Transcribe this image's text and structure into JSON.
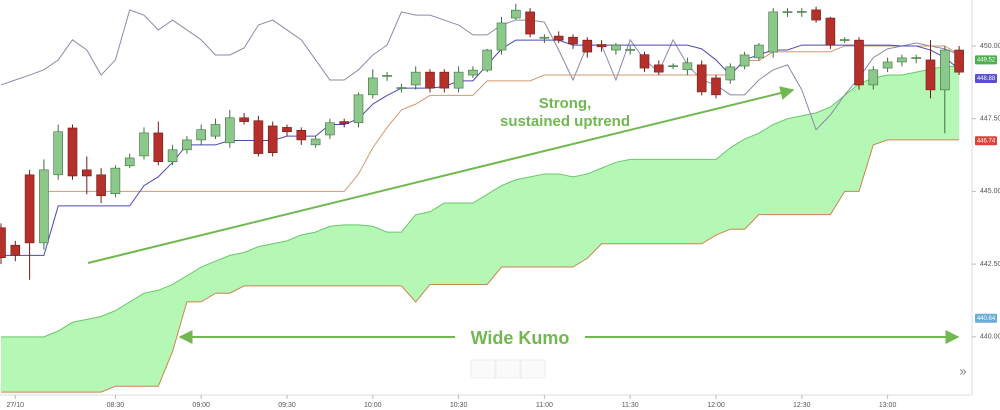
{
  "chart_data": {
    "type": "candlestick",
    "categories": [
      null,
      "27/10",
      null,
      null,
      null,
      null,
      null,
      null,
      "08:30",
      null,
      null,
      null,
      null,
      null,
      "09:00",
      null,
      null,
      null,
      null,
      null,
      "09:30",
      null,
      null,
      null,
      null,
      null,
      "10:00",
      null,
      null,
      null,
      null,
      null,
      "10:30",
      null,
      null,
      null,
      null,
      null,
      "11:00",
      null,
      null,
      null,
      null,
      null,
      "11:30",
      null,
      null,
      null,
      null,
      null,
      "12:00",
      null,
      null,
      null,
      null,
      null,
      "12:30",
      null,
      null,
      null,
      null,
      null,
      "13:00",
      null,
      null,
      null,
      null,
      null
    ],
    "open": [
      443.75,
      443.15,
      445.57,
      443.23,
      445.57,
      447.18,
      445.74,
      445.57,
      444.92,
      445.88,
      446.22,
      447.01,
      446.02,
      446.43,
      446.77,
      446.9,
      446.67,
      447.53,
      447.43,
      447.25,
      447.2,
      447.1,
      446.6,
      446.94,
      447.4,
      447.36,
      448.32,
      448.97,
      448.55,
      448.66,
      449.1,
      449.1,
      448.55,
      449.0,
      449.17,
      449.86,
      450.96,
      451.17,
      450.27,
      450.34,
      450.3,
      450.2,
      450.05,
      449.86,
      449.86,
      449.7,
      449.35,
      449.31,
      449.18,
      449.35,
      448.9,
      448.83,
      449.31,
      449.59,
      449.79,
      451.17,
      451.17,
      451.24,
      450.96,
      450.2,
      450.2,
      448.66,
      449.24,
      449.45,
      449.59,
      449.52,
      448.49,
      449.86
    ],
    "high": [
      443.9,
      443.3,
      445.74,
      446.1,
      447.3,
      447.3,
      446.2,
      445.8,
      445.9,
      446.3,
      447.2,
      447.4,
      446.6,
      446.9,
      447.3,
      447.5,
      447.8,
      447.7,
      447.6,
      447.4,
      447.3,
      447.2,
      446.9,
      447.5,
      447.5,
      448.4,
      449.2,
      449.1,
      448.7,
      449.3,
      449.2,
      449.2,
      449.3,
      449.3,
      449.9,
      451.0,
      451.45,
      451.3,
      450.4,
      450.5,
      450.4,
      450.3,
      450.2,
      450.1,
      450.0,
      449.8,
      449.5,
      449.4,
      449.6,
      449.5,
      449.0,
      449.4,
      449.8,
      450.1,
      451.3,
      451.3,
      451.3,
      451.35,
      451.0,
      450.3,
      450.3,
      449.3,
      449.6,
      449.7,
      449.7,
      450.2,
      450.0,
      450.0
    ],
    "low": [
      442.5,
      442.6,
      441.96,
      443.0,
      445.4,
      445.4,
      444.9,
      444.6,
      444.8,
      445.8,
      446.1,
      445.9,
      445.9,
      446.3,
      446.6,
      446.8,
      446.5,
      447.3,
      446.2,
      446.2,
      446.9,
      446.6,
      446.5,
      446.8,
      447.2,
      447.2,
      448.2,
      448.8,
      448.4,
      448.5,
      448.4,
      448.4,
      448.4,
      448.9,
      449.1,
      449.7,
      450.9,
      450.3,
      450.1,
      450.1,
      449.9,
      449.6,
      449.8,
      449.7,
      449.7,
      449.1,
      449.0,
      449.2,
      449.0,
      448.3,
      448.2,
      448.7,
      449.2,
      449.5,
      449.6,
      451.0,
      451.0,
      450.8,
      449.9,
      450.1,
      448.5,
      448.5,
      449.1,
      449.3,
      449.4,
      448.2,
      447.0,
      449.0
    ],
    "close": [
      442.72,
      442.8,
      443.23,
      445.74,
      447.05,
      445.53,
      445.53,
      444.85,
      445.8,
      446.15,
      447.01,
      446.02,
      446.43,
      446.77,
      447.12,
      447.3,
      447.53,
      447.4,
      446.3,
      446.33,
      447.05,
      446.77,
      446.8,
      447.36,
      447.33,
      448.32,
      448.9,
      448.99,
      448.57,
      449.1,
      448.55,
      448.55,
      449.1,
      449.17,
      449.86,
      450.79,
      451.23,
      450.41,
      450.3,
      450.2,
      450.07,
      449.79,
      449.97,
      450.03,
      449.88,
      449.24,
      449.1,
      449.32,
      449.42,
      448.42,
      448.32,
      449.28,
      449.69,
      450.03,
      451.17,
      451.18,
      451.19,
      450.89,
      450.03,
      450.22,
      448.66,
      449.18,
      449.45,
      449.59,
      449.6,
      448.49,
      449.86,
      449.1
    ],
    "up_color": "#8cc88c",
    "down_color": "#b5302a",
    "cloud": {
      "color": "#b5f7b5",
      "upper_color": "#6cc66c",
      "lower_color": "#c9864f",
      "upper": [
        440.0,
        440.0,
        440.0,
        440.0,
        440.2,
        440.5,
        440.6,
        440.7,
        440.9,
        441.2,
        441.5,
        441.6,
        441.8,
        442.1,
        442.4,
        442.6,
        442.8,
        442.9,
        443.1,
        443.2,
        443.3,
        443.5,
        443.6,
        443.8,
        443.85,
        443.85,
        443.8,
        443.6,
        443.6,
        444.2,
        444.3,
        444.6,
        444.6,
        444.6,
        444.9,
        445.2,
        445.4,
        445.5,
        445.6,
        445.6,
        445.5,
        445.6,
        445.8,
        446.0,
        446.1,
        446.1,
        446.1,
        446.1,
        446.1,
        446.1,
        446.1,
        446.5,
        446.8,
        447.0,
        447.3,
        447.5,
        447.6,
        447.7,
        447.9,
        448.3,
        448.7,
        448.9,
        449.0,
        449.0,
        449.1,
        449.2,
        449.3,
        449.3
      ],
      "lower": [
        438.1,
        438.1,
        438.1,
        438.1,
        438.1,
        438.1,
        438.1,
        438.1,
        438.3,
        438.3,
        438.3,
        438.3,
        439.5,
        441.2,
        441.2,
        441.5,
        441.5,
        441.75,
        441.75,
        441.75,
        441.75,
        441.75,
        441.75,
        441.75,
        441.75,
        441.75,
        441.75,
        441.75,
        441.75,
        441.2,
        441.8,
        441.8,
        441.8,
        441.8,
        441.8,
        442.4,
        442.4,
        442.4,
        442.4,
        442.4,
        442.4,
        442.7,
        443.2,
        443.2,
        443.2,
        443.2,
        443.2,
        443.2,
        443.2,
        443.2,
        443.5,
        443.7,
        443.7,
        444.2,
        444.2,
        444.2,
        444.2,
        444.2,
        444.2,
        445.0,
        445.0,
        446.6,
        446.77,
        446.77,
        446.77,
        446.77,
        446.77,
        446.77
      ]
    },
    "lines": [
      {
        "color": "#8a8aa8",
        "values": [
          448.66,
          448.83,
          449.0,
          449.18,
          449.52,
          450.21,
          449.86,
          449.0,
          449.52,
          451.24,
          451.06,
          450.55,
          450.89,
          450.55,
          450.21,
          449.69,
          449.69,
          449.93,
          450.72,
          450.89,
          450.55,
          450.21,
          449.52,
          448.83,
          448.83,
          449.18,
          449.69,
          450.03,
          451.17,
          451.06,
          451.06,
          450.89,
          450.72,
          450.38,
          450.38,
          450.72,
          450.89,
          450.89,
          450.82,
          449.86,
          448.83,
          450.03,
          450.03,
          448.83,
          450.21,
          449.52,
          449.11,
          450.21,
          449.35,
          448.83,
          448.66,
          448.32,
          448.32,
          448.83,
          449.18,
          449.35,
          448.49,
          447.12,
          447.63,
          448.32,
          448.9,
          449.6,
          449.9,
          450.0,
          450.1,
          450.0,
          449.9,
          449.7
        ]
      },
      {
        "color": "#d19a73",
        "values": [
          null,
          null,
          null,
          445.0,
          445.0,
          445.0,
          445.0,
          445.0,
          445.0,
          445.0,
          445.0,
          445.0,
          445.0,
          445.0,
          445.0,
          445.0,
          445.0,
          445.0,
          445.0,
          445.0,
          445.0,
          445.0,
          445.0,
          445.0,
          445.0,
          445.6,
          446.5,
          447.2,
          447.8,
          448.0,
          448.3,
          448.3,
          448.3,
          448.3,
          448.8,
          448.8,
          448.8,
          448.8,
          449.0,
          449.0,
          449.0,
          449.0,
          449.0,
          449.0,
          449.0,
          449.0,
          449.0,
          449.0,
          449.0,
          449.0,
          449.0,
          449.0,
          449.5,
          449.5,
          449.8,
          449.8,
          449.8,
          449.8,
          449.8,
          450.0,
          450.0,
          450.0,
          450.0,
          450.0,
          450.0,
          450.0,
          450.0,
          449.7
        ]
      },
      {
        "color": "#4a4ab5",
        "values": [
          442.8,
          442.8,
          442.8,
          442.8,
          444.5,
          444.5,
          444.5,
          444.5,
          444.5,
          444.5,
          445.2,
          445.5,
          446.0,
          446.6,
          446.6,
          446.6,
          446.75,
          446.75,
          446.75,
          446.75,
          446.9,
          446.9,
          446.9,
          447.3,
          447.3,
          447.5,
          448.0,
          448.3,
          448.55,
          448.55,
          448.55,
          448.6,
          448.8,
          448.8,
          449.35,
          449.9,
          450.2,
          450.2,
          450.2,
          450.2,
          450.03,
          450.03,
          450.03,
          450.03,
          450.03,
          450.03,
          450.03,
          450.03,
          450.03,
          449.9,
          449.52,
          449.0,
          449.52,
          449.7,
          449.86,
          449.86,
          450.03,
          450.03,
          450.03,
          450.03,
          450.03,
          450.03,
          450.03,
          450.0,
          450.0,
          449.86,
          449.6,
          449.2
        ]
      }
    ],
    "ylim": [
      438.0,
      451.58
    ],
    "yticks": [
      {
        "value": 440,
        "label": "440.00"
      },
      {
        "value": 442.5,
        "label": "442.50"
      },
      {
        "value": 445,
        "label": "445.00"
      },
      {
        "value": 447.5,
        "label": "447.50"
      },
      {
        "value": 450,
        "label": "450.00"
      }
    ],
    "grid": false,
    "price_tags": [
      {
        "value": 449.52,
        "color": "#4caf50"
      },
      {
        "value": 448.88,
        "color": "#5a4fcf"
      },
      {
        "value": 446.74,
        "color": "#d9443a"
      },
      {
        "value": 440.64,
        "color": "#6aaed6"
      }
    ],
    "annotations": [
      "Strong,",
      "sustained uptrend",
      "Wide Kumo"
    ],
    "scroll_button": "»"
  }
}
